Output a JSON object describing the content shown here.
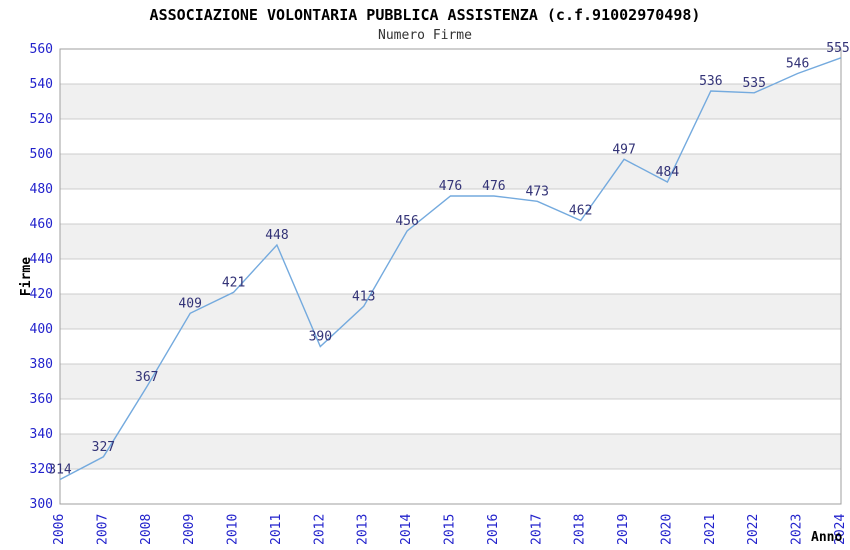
{
  "header": {
    "title": "ASSOCIAZIONE VOLONTARIA PUBBLICA ASSISTENZA (c.f.91002970498)",
    "subtitle": "Numero Firme"
  },
  "chart_data": {
    "type": "line",
    "title": "ASSOCIAZIONE VOLONTARIA PUBBLICA ASSISTENZA (c.f.91002970498)",
    "subtitle": "Numero Firme",
    "xlabel": "Anno",
    "ylabel": "Firme",
    "categories": [
      "2006",
      "2007",
      "2008",
      "2009",
      "2010",
      "2011",
      "2012",
      "2013",
      "2014",
      "2015",
      "2016",
      "2017",
      "2018",
      "2019",
      "2020",
      "2021",
      "2022",
      "2023",
      "2024"
    ],
    "series": [
      {
        "name": "Numero Firme",
        "values": [
          314,
          327,
          367,
          409,
          421,
          448,
          390,
          413,
          456,
          476,
          476,
          473,
          462,
          497,
          484,
          536,
          535,
          546,
          555
        ]
      }
    ],
    "ylim": [
      300,
      560
    ],
    "ytick_step": 20,
    "grid": "horizontal-only",
    "banded_background": true,
    "x_label_rotation_deg": 90,
    "point_markers": false,
    "data_labels_shown": true,
    "legend": "none",
    "colors": {
      "line": "#74aade",
      "grid_line": "#cccccc",
      "band_fill": "#f0f0f0",
      "plot_border": "#9f9f9f",
      "tick_label": "#2222cc",
      "value_label": "#333377",
      "title": "#000000",
      "subtitle": "#333333",
      "axis_title": "#000000",
      "background": "#ffffff"
    }
  }
}
